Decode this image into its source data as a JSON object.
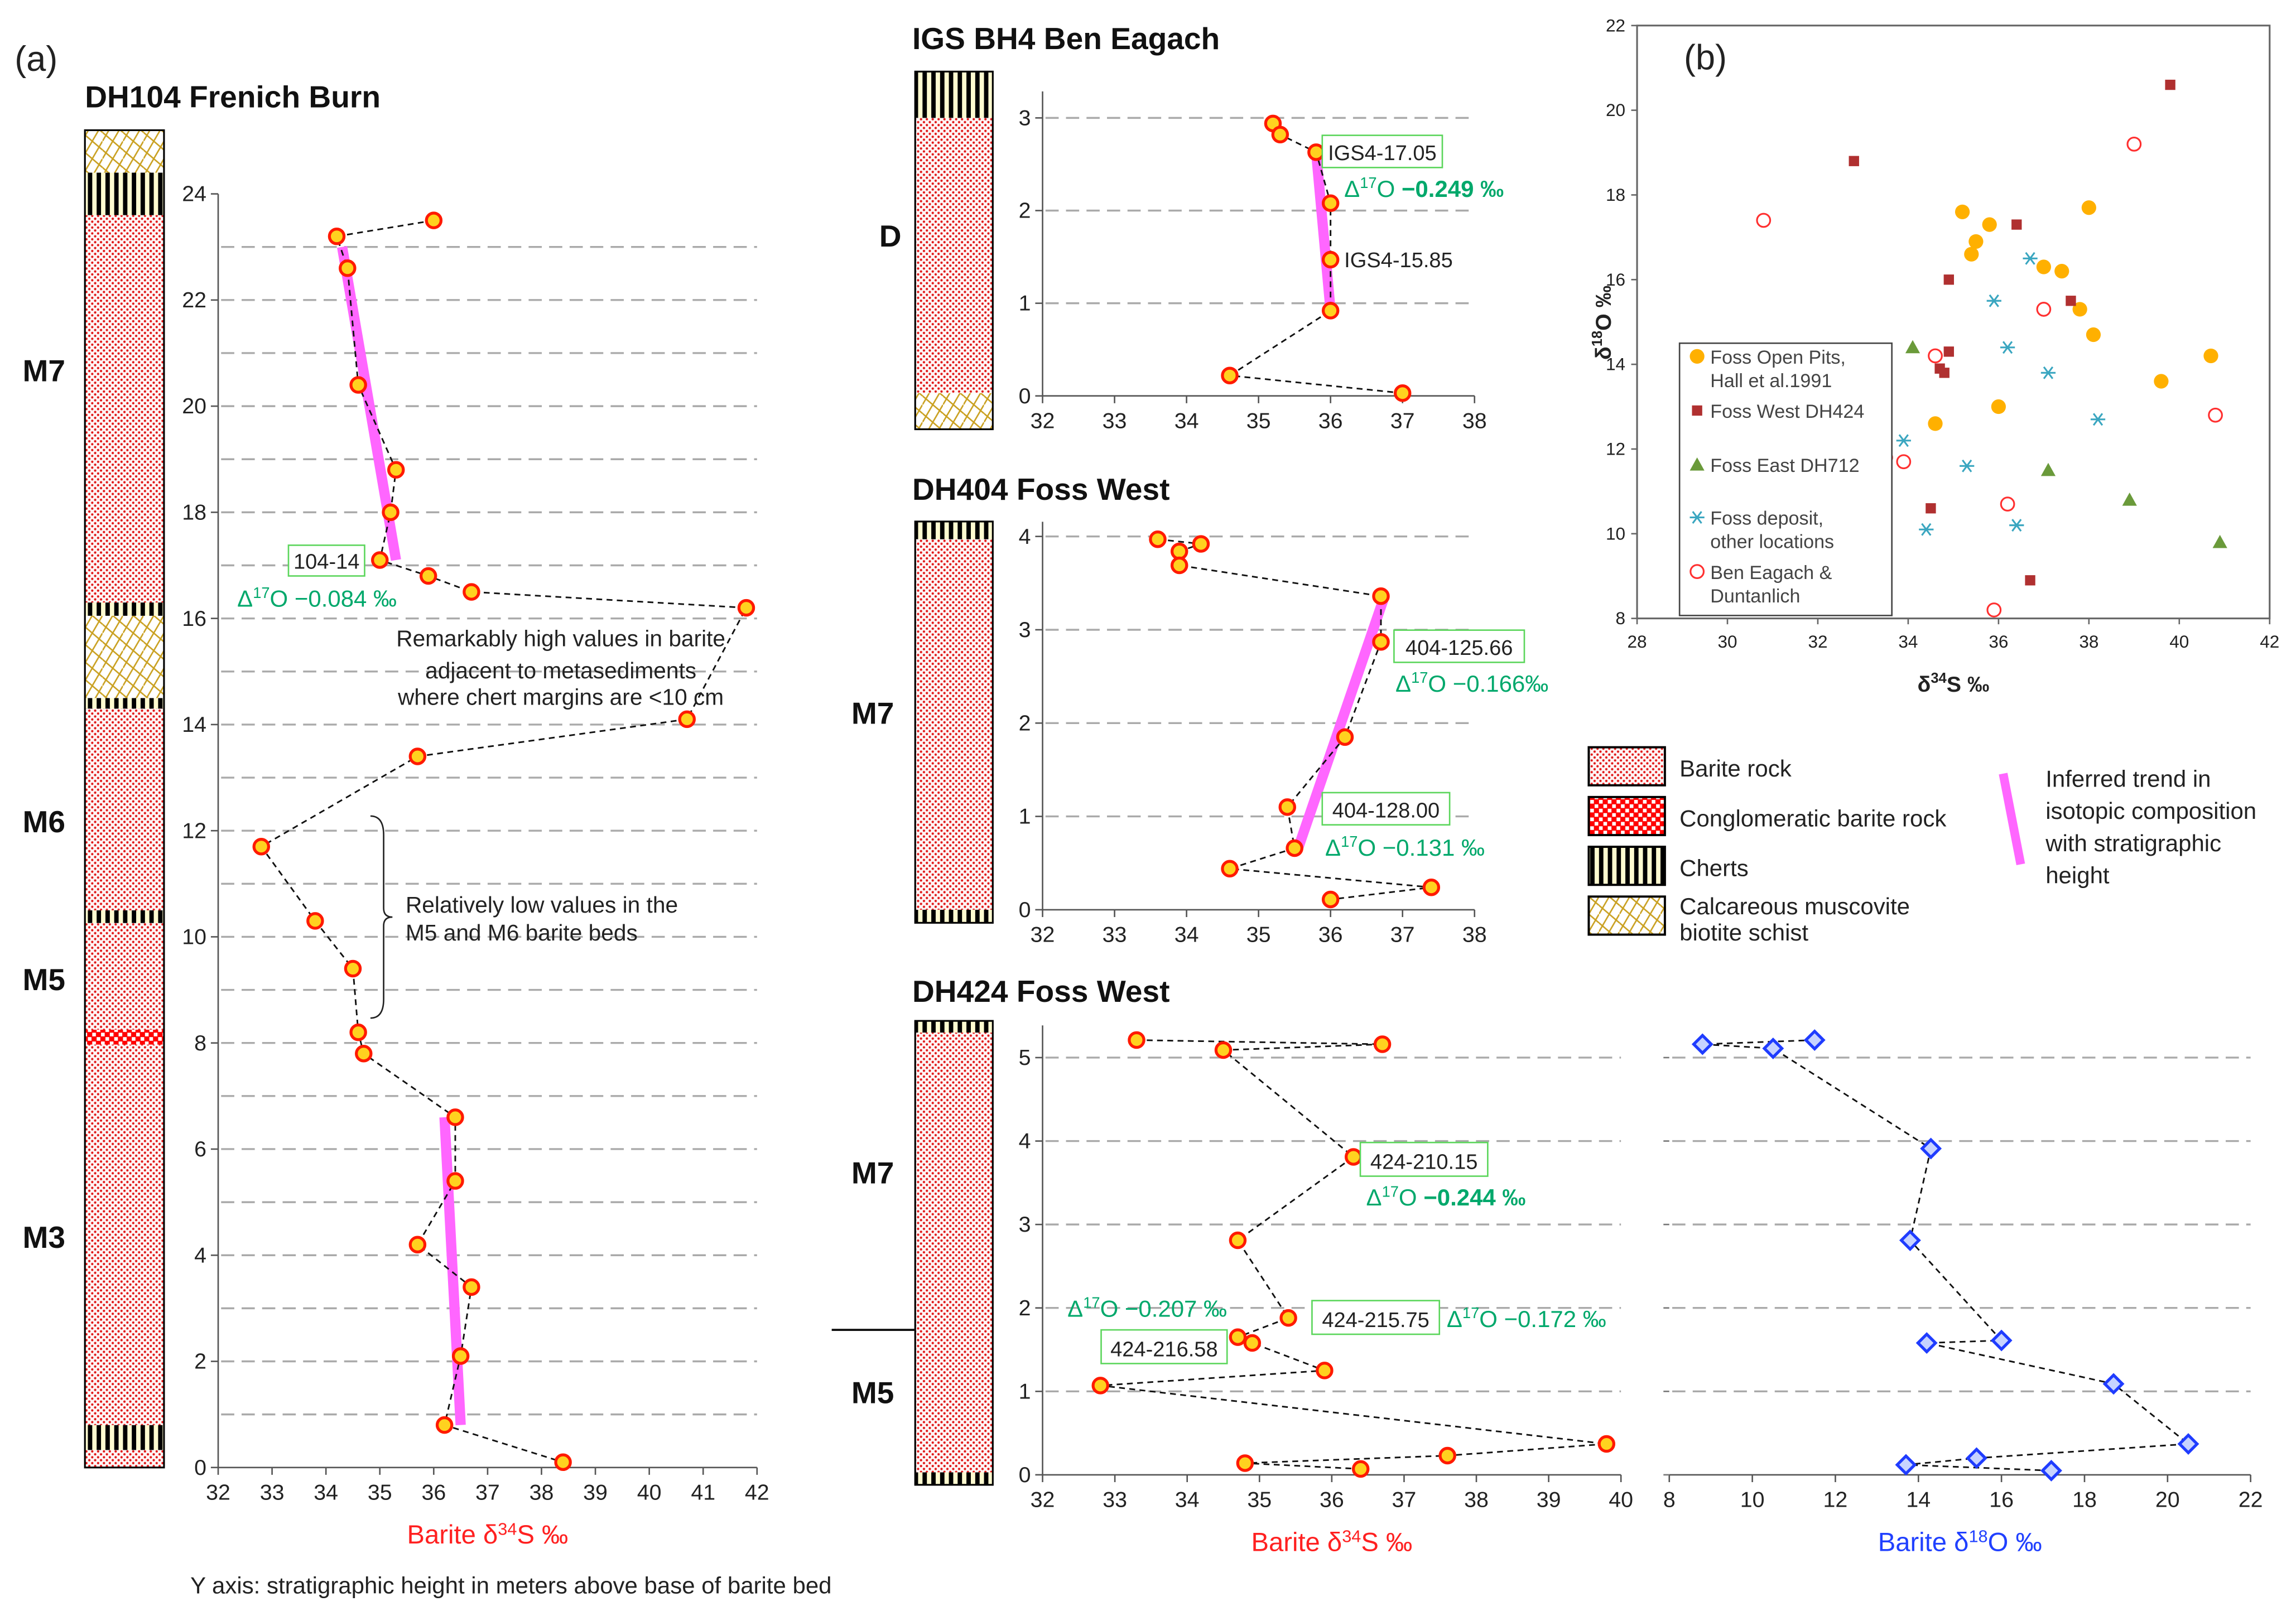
{
  "panel_a_label": "(a)",
  "panel_b_label": "(b)",
  "footnote": "Y axis: stratigraphic height in meters above base of barite bed",
  "colors": {
    "marker_fill": "#ffd21f",
    "marker_stroke": "#ff1a00",
    "trend": "#ff66ff",
    "annot_green": "#00a86b",
    "o18_fill": "#c7d3ff",
    "o18_stroke": "#1f3cff",
    "s_axis_label": "#ff2020",
    "o_axis_label": "#2040ff"
  },
  "chart_data": [
    {
      "id": "dh104",
      "type": "line",
      "title": "DH104 Frenich Burn",
      "xlabel": {
        "pre": "Barite δ",
        "sup": "34",
        "post": "S ‰"
      },
      "ylabel": "stratigraphic height (m)",
      "xlim": [
        32,
        42
      ],
      "ylim": [
        0,
        24
      ],
      "xticks": [
        32,
        33,
        34,
        35,
        36,
        37,
        38,
        39,
        40,
        41,
        42
      ],
      "yticks": [
        0,
        2,
        4,
        6,
        8,
        10,
        12,
        14,
        16,
        18,
        20,
        22,
        24
      ],
      "grid": "dashed horizontal, every 1 m",
      "units": [
        {
          "label": "M7",
          "h": 20.2
        },
        {
          "label": "M6",
          "h": 11.9
        },
        {
          "label": "M5",
          "h": 8.9
        },
        {
          "label": "M3",
          "h": 4.2
        }
      ],
      "lithology": [
        {
          "type": "barite",
          "from": 0,
          "to": 0.33
        },
        {
          "type": "chert",
          "from": 0.33,
          "to": 0.8
        },
        {
          "type": "barite",
          "from": 0.8,
          "to": 7.97
        },
        {
          "type": "conglomerate",
          "from": 7.97,
          "to": 8.25
        },
        {
          "type": "barite",
          "from": 8.25,
          "to": 10.26
        },
        {
          "type": "chert",
          "from": 10.26,
          "to": 10.5
        },
        {
          "type": "barite",
          "from": 10.5,
          "to": 14.3
        },
        {
          "type": "chert",
          "from": 14.3,
          "to": 14.5
        },
        {
          "type": "schist",
          "from": 14.5,
          "to": 16.05
        },
        {
          "type": "chert",
          "from": 16.05,
          "to": 16.3
        },
        {
          "type": "barite",
          "from": 16.3,
          "to": 23.6
        },
        {
          "type": "chert",
          "from": 23.6,
          "to": 24.4
        },
        {
          "type": "schist",
          "from": 24.4,
          "to": 25.2
        }
      ],
      "series": [
        {
          "name": "d34S",
          "points": [
            [
              36.0,
              23.5
            ],
            [
              34.2,
              23.2
            ],
            [
              34.4,
              22.6
            ],
            [
              34.6,
              20.4
            ],
            [
              35.3,
              18.8
            ],
            [
              35.2,
              18.0
            ],
            [
              35.0,
              17.1
            ],
            [
              35.9,
              16.8
            ],
            [
              36.7,
              16.5
            ],
            [
              41.8,
              16.2
            ],
            [
              40.7,
              14.1
            ],
            [
              35.7,
              13.4
            ],
            [
              32.8,
              11.7
            ],
            [
              33.8,
              10.3
            ],
            [
              34.5,
              9.4
            ],
            [
              34.6,
              8.2
            ],
            [
              34.7,
              7.8
            ],
            [
              36.4,
              6.6
            ],
            [
              36.4,
              5.4
            ],
            [
              35.7,
              4.2
            ],
            [
              36.7,
              3.4
            ],
            [
              36.5,
              2.1
            ],
            [
              36.2,
              0.8
            ],
            [
              38.4,
              0.1
            ]
          ]
        }
      ],
      "trends": [
        [
          [
            34.3,
            23.0
          ],
          [
            35.3,
            17.1
          ]
        ],
        [
          [
            36.2,
            6.6
          ],
          [
            36.5,
            0.8
          ]
        ]
      ],
      "annotations": [
        {
          "sample": "104-14",
          "d17": {
            "pre": "Δ",
            "sup": "17",
            "post": "O −0.084 ‰"
          }
        }
      ],
      "notes": [
        [
          "Remarkably high values in barite",
          "adjacent to metasediments",
          "where chert margins are <10 cm"
        ],
        [
          "Relatively low values in the",
          "M5 and M6 barite beds"
        ]
      ]
    },
    {
      "id": "igs",
      "type": "line",
      "title": "IGS BH4 Ben Eagach",
      "xlim": [
        32,
        38
      ],
      "ylim": [
        0,
        3
      ],
      "xticks": [
        32,
        33,
        34,
        35,
        36,
        37,
        38
      ],
      "yticks": [
        0,
        1,
        2,
        3
      ],
      "units": [
        {
          "label": "D",
          "h": 1.6
        }
      ],
      "lithology": [
        {
          "type": "schist",
          "from": -0.36,
          "to": 0.03
        },
        {
          "type": "barite",
          "from": 0.03,
          "to": 3.0
        },
        {
          "type": "chert",
          "from": 3.0,
          "to": 3.5
        }
      ],
      "series": [
        {
          "name": "d34S",
          "points": [
            [
              35.2,
              2.94
            ],
            [
              35.3,
              2.82
            ],
            [
              35.8,
              2.63
            ],
            [
              36.0,
              2.08
            ],
            [
              36.0,
              1.47
            ],
            [
              36.0,
              0.92
            ],
            [
              34.6,
              0.22
            ],
            [
              37.0,
              0.03
            ]
          ]
        }
      ],
      "trends": [
        [
          [
            35.8,
            2.63
          ],
          [
            36.0,
            0.92
          ]
        ]
      ],
      "annotations": [
        {
          "sample": "IGS4-17.05",
          "d17": {
            "pre": "Δ",
            "sup": "17",
            "post": "O ",
            "bold": "−0.249 ‰"
          }
        },
        {
          "sample_plain": "IGS4-15.85"
        }
      ]
    },
    {
      "id": "dh404",
      "type": "line",
      "title": "DH404 Foss West",
      "xlim": [
        32,
        38
      ],
      "ylim": [
        0,
        4
      ],
      "xticks": [
        32,
        33,
        34,
        35,
        36,
        37,
        38
      ],
      "yticks": [
        0,
        1,
        2,
        3,
        4
      ],
      "units": [
        {
          "label": "M7",
          "h": 2.0
        }
      ],
      "lithology": [
        {
          "type": "chert",
          "from": -0.14,
          "to": 0
        },
        {
          "type": "barite",
          "from": 0,
          "to": 3.97
        },
        {
          "type": "chert",
          "from": 3.97,
          "to": 4.16
        }
      ],
      "series": [
        {
          "name": "d34S",
          "points": [
            [
              33.6,
              3.97
            ],
            [
              34.2,
              3.92
            ],
            [
              33.9,
              3.84
            ],
            [
              33.9,
              3.69
            ],
            [
              36.7,
              3.36
            ],
            [
              36.7,
              2.87
            ],
            [
              36.2,
              1.85
            ],
            [
              35.4,
              1.1
            ],
            [
              35.5,
              0.66
            ],
            [
              34.6,
              0.44
            ],
            [
              37.4,
              0.24
            ],
            [
              36.0,
              0.11
            ]
          ]
        }
      ],
      "trends": [
        [
          [
            36.75,
            3.36
          ],
          [
            35.55,
            0.66
          ]
        ]
      ],
      "annotations": [
        {
          "sample": "404-125.66",
          "d17": {
            "pre": "Δ",
            "sup": "17",
            "post": "O −0.166‰"
          }
        },
        {
          "sample": "404-128.00",
          "d17": {
            "pre": "Δ",
            "sup": "17",
            "post": "O −0.131 ‰"
          }
        }
      ]
    },
    {
      "id": "dh424s",
      "type": "line",
      "title": "DH424 Foss West",
      "xlabel": {
        "pre": "Barite δ",
        "sup": "34",
        "post": "S ‰"
      },
      "xlim": [
        32,
        40
      ],
      "ylim": [
        0,
        5
      ],
      "xticks": [
        32,
        33,
        34,
        35,
        36,
        37,
        38,
        39,
        40
      ],
      "yticks": [
        0,
        1,
        2,
        3,
        4,
        5
      ],
      "units": [
        {
          "label": "M7",
          "h": 3.5
        },
        {
          "label": "M5",
          "h": 0.85
        }
      ],
      "lithology": [
        {
          "type": "chert",
          "from": -0.12,
          "to": 0.03
        },
        {
          "type": "barite",
          "from": 0.03,
          "to": 5.3
        },
        {
          "type": "chert",
          "from": 5.3,
          "to": 5.44
        }
      ],
      "series": [
        {
          "name": "d34S",
          "points": [
            [
              33.3,
              5.21
            ],
            [
              36.7,
              5.16
            ],
            [
              34.5,
              5.09
            ],
            [
              36.3,
              3.81
            ],
            [
              34.7,
              2.81
            ],
            [
              35.4,
              1.88
            ],
            [
              34.7,
              1.65
            ],
            [
              34.9,
              1.58
            ],
            [
              35.9,
              1.25
            ],
            [
              32.8,
              1.07
            ],
            [
              39.8,
              0.37
            ],
            [
              37.6,
              0.23
            ],
            [
              34.8,
              0.14
            ],
            [
              36.4,
              0.07
            ]
          ]
        }
      ],
      "annotations": [
        {
          "sample": "424-210.15",
          "d17": {
            "pre": "Δ",
            "sup": "17",
            "post": "O ",
            "bold": "−0.244 ‰"
          }
        },
        {
          "d17": {
            "pre": "Δ",
            "sup": "17",
            "post": "O −0.207 ‰"
          }
        },
        {
          "sample": "424-215.75",
          "d17": {
            "pre": "Δ",
            "sup": "17",
            "post": "O −0.172 ‰"
          }
        },
        {
          "sample": "424-216.58"
        }
      ]
    },
    {
      "id": "dh424o",
      "type": "line",
      "xlabel": {
        "pre": "Barite δ",
        "sup": "18",
        "post": "O ‰"
      },
      "xlim": [
        8,
        22
      ],
      "ylim": [
        0,
        5
      ],
      "xticks": [
        8,
        10,
        12,
        14,
        16,
        18,
        20,
        22
      ],
      "series": [
        {
          "name": "d18O",
          "points": [
            [
              11.5,
              5.21
            ],
            [
              8.8,
              5.16
            ],
            [
              10.5,
              5.11
            ],
            [
              14.3,
              3.91
            ],
            [
              13.8,
              2.81
            ],
            [
              16.0,
              1.61
            ],
            [
              14.2,
              1.58
            ],
            [
              18.7,
              1.09
            ],
            [
              20.5,
              0.37
            ],
            [
              15.4,
              0.2
            ],
            [
              13.7,
              0.12
            ],
            [
              17.2,
              0.05
            ]
          ]
        }
      ]
    },
    {
      "id": "scatter_b",
      "type": "scatter",
      "xlabel": {
        "pre": "δ",
        "sup": "34",
        "post": "S ‰"
      },
      "ylabel": {
        "pre": "δ",
        "sup": "18",
        "post": "O ‰"
      },
      "xlim": [
        28,
        42
      ],
      "ylim": [
        8,
        22
      ],
      "xticks": [
        28,
        30,
        32,
        34,
        36,
        38,
        40,
        42
      ],
      "yticks": [
        8,
        10,
        12,
        14,
        16,
        18,
        20,
        22
      ],
      "legend": "bottom-left",
      "series": [
        {
          "name": [
            "Foss Open Pits,",
            "Hall et al.1991"
          ],
          "marker": "circle",
          "color": "#ffb000",
          "points": [
            [
              35.2,
              17.6
            ],
            [
              35.8,
              17.3
            ],
            [
              35.5,
              16.9
            ],
            [
              35.4,
              16.6
            ],
            [
              38.0,
              17.7
            ],
            [
              37.0,
              16.3
            ],
            [
              37.4,
              16.2
            ],
            [
              37.8,
              15.3
            ],
            [
              38.1,
              14.7
            ],
            [
              40.7,
              14.2
            ],
            [
              39.6,
              13.6
            ],
            [
              36.0,
              13.0
            ],
            [
              34.6,
              12.6
            ]
          ]
        },
        {
          "name": [
            "Foss West DH424"
          ],
          "marker": "square",
          "color": "#b03030",
          "points": [
            [
              39.8,
              20.6
            ],
            [
              32.8,
              18.8
            ],
            [
              36.4,
              17.3
            ],
            [
              34.9,
              16.0
            ],
            [
              37.6,
              15.5
            ],
            [
              34.9,
              14.3
            ],
            [
              34.7,
              13.9
            ],
            [
              34.8,
              13.8
            ],
            [
              34.5,
              10.6
            ],
            [
              36.7,
              8.9
            ]
          ]
        },
        {
          "name": [
            "Foss East DH712"
          ],
          "marker": "triangle",
          "color": "#6a9a3a",
          "points": [
            [
              34.1,
              14.4
            ],
            [
              37.1,
              11.5
            ],
            [
              38.9,
              10.8
            ],
            [
              40.9,
              9.8
            ]
          ]
        },
        {
          "name": [
            "Foss deposit,",
            "other locations"
          ],
          "marker": "asterisk",
          "color": "#3aa6c0",
          "points": [
            [
              36.7,
              16.5
            ],
            [
              35.9,
              15.5
            ],
            [
              36.2,
              14.4
            ],
            [
              37.1,
              13.8
            ],
            [
              38.2,
              12.7
            ],
            [
              33.9,
              12.2
            ],
            [
              35.3,
              11.6
            ],
            [
              34.4,
              10.1
            ],
            [
              36.4,
              10.2
            ]
          ]
        },
        {
          "name": [
            "Ben Eagach &",
            "Duntanlich"
          ],
          "marker": "open-circle",
          "color": "#ff3030",
          "points": [
            [
              39.0,
              19.2
            ],
            [
              30.8,
              17.4
            ],
            [
              37.0,
              15.3
            ],
            [
              34.6,
              14.2
            ],
            [
              40.8,
              12.8
            ],
            [
              33.5,
              11.8
            ],
            [
              33.9,
              11.7
            ],
            [
              36.2,
              10.7
            ],
            [
              35.9,
              8.2
            ]
          ]
        }
      ]
    }
  ],
  "legend_a": {
    "items": [
      {
        "type": "barite",
        "label": [
          "Barite rock"
        ]
      },
      {
        "type": "conglomerate",
        "label": [
          "Conglomeratic barite rock"
        ]
      },
      {
        "type": "chert",
        "label": [
          "Cherts"
        ]
      },
      {
        "type": "schist",
        "label": [
          "Calcareous muscovite",
          "biotite schist"
        ]
      }
    ],
    "trend_label": [
      "Inferred trend in",
      "isotopic composition",
      "with stratigraphic",
      "height"
    ]
  }
}
